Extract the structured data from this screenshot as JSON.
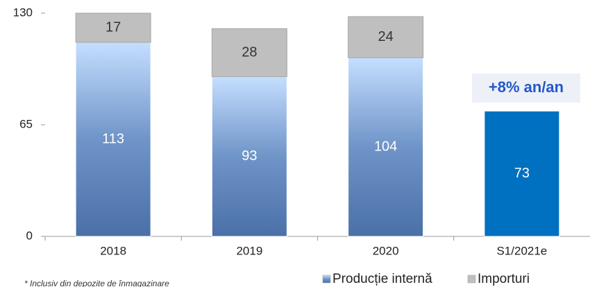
{
  "chart_data": {
    "type": "stacked_bar",
    "categories": [
      "2018",
      "2019",
      "2020",
      "S1/2021e"
    ],
    "series": [
      {
        "name": "Producție internă",
        "color": "#4a70a8",
        "gradient": [
          true,
          true,
          true,
          false
        ],
        "bar_colors": [
          "#4a70a8",
          "#4a70a8",
          "#4a70a8",
          "#0070c0"
        ],
        "values": [
          113,
          93,
          104,
          73
        ]
      },
      {
        "name": "Importuri",
        "color": "#bfbfbf",
        "values": [
          17,
          28,
          24,
          null
        ]
      }
    ],
    "ylim": [
      0,
      130
    ],
    "yticks": [
      0,
      65,
      130
    ],
    "annotation": "+8% an/an",
    "footnote": "* Inclusiv din depozite de înmagazinare",
    "legend": "bottom"
  }
}
